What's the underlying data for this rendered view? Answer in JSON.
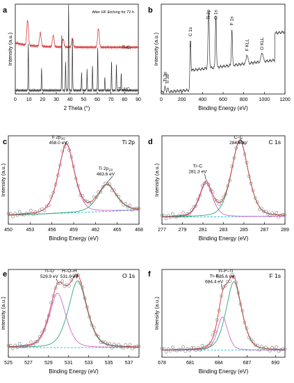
{
  "figure": {
    "panels": [
      "a",
      "b",
      "c",
      "d",
      "e",
      "f"
    ]
  },
  "chart_data": [
    {
      "id": "a",
      "type": "line",
      "panel_letter": "a",
      "xlabel": "2 Theta",
      "xunit": "(°)",
      "ylabel": "Intensity (a.u.)",
      "xlim": [
        0,
        90
      ],
      "xticks": [
        0,
        10,
        20,
        30,
        40,
        50,
        60,
        70,
        80,
        90
      ],
      "annotations": [
        {
          "text": "After HF Etching for 72 h"
        },
        {
          "text": "Ti₃C₂"
        },
        {
          "text": "Ti₃AlC₂"
        }
      ],
      "series": [
        {
          "color": "#d62728",
          "peaks": [
            [
              9.0,
              0.55
            ],
            [
              18.3,
              0.3
            ],
            [
              27.8,
              0.25
            ],
            [
              35.0,
              0.18
            ],
            [
              41.8,
              0.2
            ],
            [
              60.8,
              0.42
            ]
          ],
          "baseline": 0.52
        },
        {
          "color": "#333333",
          "peaks": [
            [
              9.5,
              0.55
            ],
            [
              19.2,
              0.25
            ],
            [
              34.0,
              0.65
            ],
            [
              36.8,
              0.35
            ],
            [
              39.0,
              1.0
            ],
            [
              41.8,
              0.6
            ],
            [
              48.5,
              0.2
            ],
            [
              52.5,
              0.25
            ],
            [
              56.5,
              0.3
            ],
            [
              60.3,
              0.5
            ],
            [
              65.5,
              0.15
            ],
            [
              70.4,
              0.35
            ],
            [
              74.0,
              0.3
            ],
            [
              77.5,
              0.2
            ]
          ],
          "baseline": 0.04
        }
      ]
    },
    {
      "id": "b",
      "type": "line",
      "panel_letter": "b",
      "xlabel": "Binding Energy (eV)",
      "ylabel": "Intensity (a.u.)",
      "xlim": [
        0,
        1200
      ],
      "xticks": [
        0,
        200,
        400,
        600,
        800,
        1000,
        1200
      ],
      "peak_labels": [
        {
          "text": "Ti 3p",
          "x": 37
        },
        {
          "text": "Ti 3s",
          "x": 62
        },
        {
          "text": "C 1s",
          "x": 282
        },
        {
          "text": "Ti 2p",
          "x": 458
        },
        {
          "text": "O 1s",
          "x": 530
        },
        {
          "text": "F 1s",
          "x": 685
        },
        {
          "text": "F KLL",
          "x": 832
        },
        {
          "text": "O KLL",
          "x": 978
        }
      ],
      "color": "#333333"
    },
    {
      "id": "c",
      "type": "line",
      "panel_letter": "c",
      "panel_title": "Ti 2p",
      "xlabel": "Binding Energy (eV)",
      "ylabel": "Intensity (a.u.)",
      "xlim": [
        450,
        468
      ],
      "xticks": [
        450,
        453,
        456,
        459,
        462,
        465,
        468
      ],
      "peaks": [
        {
          "label_main": "Ti 2p",
          "label_sub": "3/2",
          "value": "458.0 eV",
          "center": 458.0,
          "height": 0.78,
          "width": 1.2
        },
        {
          "label_main": "Ti 2p",
          "label_sub": "1/2",
          "value": "463.6 eV",
          "center": 463.6,
          "height": 0.3,
          "width": 1.4
        }
      ],
      "background": [
        0.1,
        0.16
      ]
    },
    {
      "id": "d",
      "type": "line",
      "panel_letter": "d",
      "panel_title": "C 1s",
      "xlabel": "Binding Energy (eV)",
      "ylabel": "Intensity (a.u.)",
      "xlim": [
        277,
        289
      ],
      "xticks": [
        277,
        279,
        281,
        283,
        285,
        287,
        289
      ],
      "peaks": [
        {
          "label_main": "Ti–C",
          "value": "281.3 eV",
          "center": 281.3,
          "height": 0.38,
          "width": 0.7
        },
        {
          "label_main": "C–C",
          "value": "284.6 eV",
          "center": 284.6,
          "height": 0.86,
          "width": 0.9
        }
      ],
      "background": [
        0.08,
        0.09
      ]
    },
    {
      "id": "e",
      "type": "line",
      "panel_letter": "e",
      "panel_title": "O 1s",
      "xlabel": "Binding Energy (eV)",
      "ylabel": "Intensity (a.u.)",
      "xlim": [
        525,
        538
      ],
      "xticks": [
        525,
        527,
        529,
        531,
        533,
        535,
        537
      ],
      "peaks": [
        {
          "label_main": "Ti–O",
          "value": "529.9 eV",
          "center": 529.9,
          "height": 0.62,
          "width": 0.9
        },
        {
          "label_main": "H–O–H",
          "value": "531.9 eV",
          "center": 531.9,
          "height": 0.76,
          "width": 1.0
        }
      ],
      "background": [
        0.11,
        0.11
      ]
    },
    {
      "id": "f",
      "type": "line",
      "panel_letter": "f",
      "panel_title": "F 1s",
      "xlabel": "Binding Energy (eV)",
      "ylabel": "Intensity (a.u.)",
      "xlim": [
        678,
        691
      ],
      "xticks": [
        678,
        681,
        684,
        687,
        690
      ],
      "peaks": [
        {
          "label_main": "Ti–F",
          "value": "684.4 eV",
          "center": 684.4,
          "height": 0.38,
          "width": 0.6
        },
        {
          "label_main": "Ti–F–Ti",
          "value": "685.6 eV",
          "center": 685.6,
          "height": 0.78,
          "width": 0.9
        }
      ],
      "background": [
        0.08,
        0.08
      ]
    }
  ]
}
